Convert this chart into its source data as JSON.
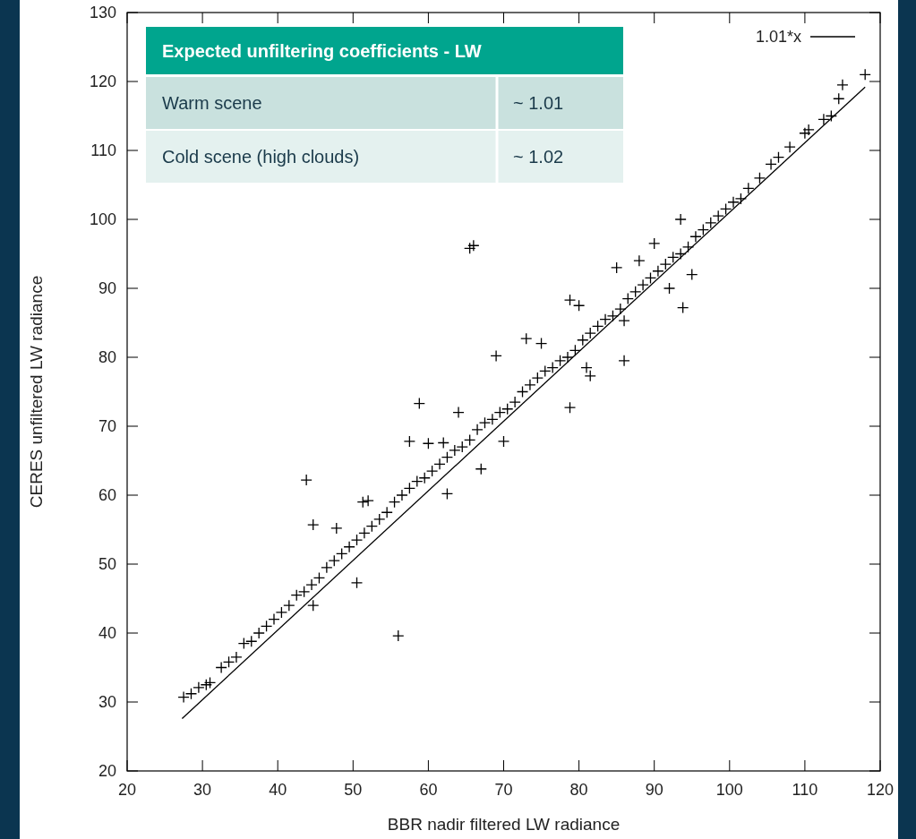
{
  "chart_data": {
    "type": "scatter",
    "xlabel": "BBR nadir filtered LW radiance",
    "ylabel": "CERES unfiltered LW radiance",
    "xlim": [
      20,
      120
    ],
    "ylim": [
      20,
      130
    ],
    "xticks": [
      20,
      30,
      40,
      50,
      60,
      70,
      80,
      90,
      100,
      110,
      120
    ],
    "yticks": [
      20,
      30,
      40,
      50,
      60,
      70,
      80,
      90,
      100,
      110,
      120,
      130
    ],
    "legend": "top right",
    "annotations": [
      "Expected unfiltering coefficients - LW",
      "Warm scene",
      "~ 1.01",
      "Cold scene (high clouds)",
      "~ 1.02"
    ],
    "series": [
      {
        "color": "#000000",
        "marker": "cross",
        "x": [
          27.5,
          28.5,
          29.5,
          30.5,
          31,
          32.5,
          33.5,
          34.5,
          35.5,
          36.5,
          37.5,
          38.5,
          39.5,
          40.5,
          41.5,
          42.5,
          43.5,
          44.5,
          45.5,
          46.5,
          47.5,
          48.5,
          49.5,
          50.5,
          51.5,
          52.5,
          53.5,
          54.5,
          55.5,
          56.5,
          57.5,
          58.5,
          59.5,
          60.5,
          61.5,
          62.5,
          63.5,
          64.5,
          65.5,
          66.5,
          67.5,
          68.5,
          69.5,
          70.5,
          71.5,
          72.5,
          73.5,
          74.5,
          75.5,
          76.5,
          77.5,
          78.5,
          79.5,
          80.5,
          81.5,
          82.5,
          83.5,
          84.5,
          85.5,
          86.5,
          87.5,
          88.5,
          89.5,
          90.5,
          91.5,
          92.5,
          93.5,
          94.5,
          95.5,
          96.5,
          97.5,
          98.5,
          99.5,
          100.5,
          101.5,
          102.5,
          104,
          105.5,
          106.5,
          108,
          110,
          110.5,
          112.5,
          113.5,
          114.5,
          115,
          118,
          60,
          64,
          67,
          70,
          75,
          80,
          85,
          88,
          92,
          95,
          90,
          43.8,
          44.7,
          47.8,
          51.3,
          52,
          50.5,
          56,
          44.7,
          58.8,
          57.5,
          62,
          69,
          62.5,
          73,
          78.8,
          78.8,
          86,
          86,
          81.5,
          65.5,
          66,
          81,
          93.8,
          93.5
        ],
        "values": [
          30.7,
          31.2,
          32.1,
          32.5,
          32.8,
          35,
          35.8,
          36.5,
          38.5,
          38.8,
          40,
          41,
          42,
          43,
          44,
          45.5,
          46,
          47,
          48,
          49.5,
          50.5,
          51.5,
          52.5,
          53.5,
          54.5,
          55.5,
          56.5,
          57.5,
          59,
          60,
          61,
          62,
          62.5,
          63.5,
          64.5,
          65.5,
          66.5,
          67,
          68,
          69.5,
          70.5,
          71,
          72,
          72.5,
          73.5,
          75,
          76,
          77,
          78,
          78.5,
          79.5,
          80,
          81,
          82.5,
          83.5,
          84.5,
          85.5,
          86,
          87,
          88.5,
          89.5,
          90.5,
          91.5,
          92.5,
          93.5,
          94.5,
          95,
          96,
          97.5,
          98.5,
          99.5,
          100.5,
          101.5,
          102.5,
          103,
          104.5,
          106,
          108,
          109,
          110.5,
          112.5,
          113,
          114.5,
          115,
          117.5,
          119.5,
          121,
          67.5,
          72,
          63.8,
          67.8,
          82,
          87.5,
          93,
          94,
          90,
          92,
          96.5,
          62.2,
          55.7,
          55.2,
          59,
          59.2,
          47.3,
          39.6,
          44,
          73.3,
          67.8,
          67.6,
          80.2,
          60.2,
          82.7,
          72.7,
          88.3,
          79.5,
          85.3,
          77.3,
          95.8,
          96.2,
          78.5,
          87.2,
          100
        ]
      },
      {
        "type": "line",
        "name": "1.01*x",
        "color": "#000000",
        "x": [
          27.3,
          118
        ],
        "values": [
          27.6,
          119.2
        ]
      }
    ]
  }
}
